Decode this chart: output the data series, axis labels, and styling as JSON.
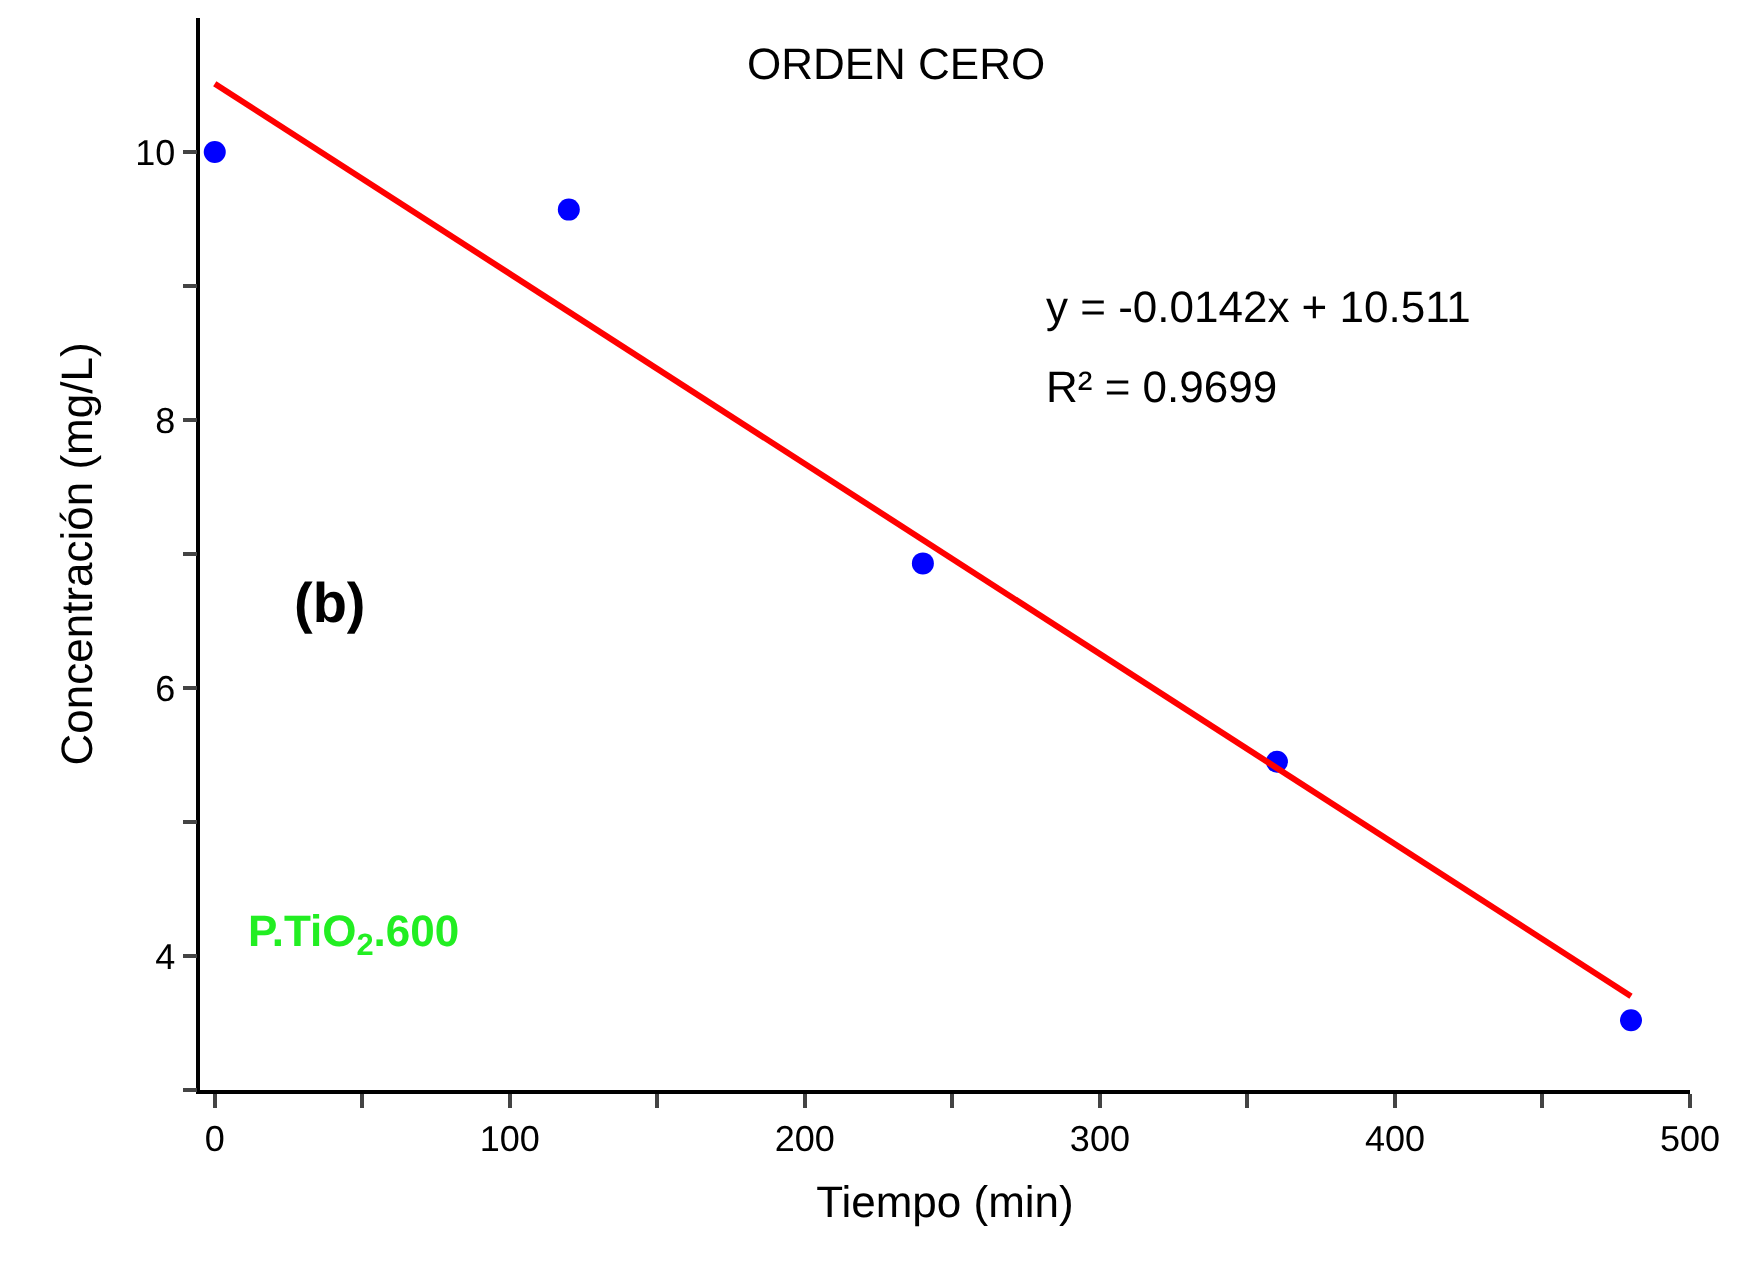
{
  "chart_data": {
    "type": "scatter",
    "title": "ORDEN CERO",
    "xlabel": "Tiempo (min)",
    "ylabel": "Concentración (mg/L)",
    "annotations": [
      "y = -0.0142x + 10.511",
      "R² = 0.9699",
      "(b)",
      "P.TiO$_{2}$.600"
    ],
    "series": [
      {
        "color": "#0000ff",
        "marker": "circle",
        "x": [
          0,
          120,
          240,
          360,
          480
        ],
        "values": [
          10,
          9.57,
          6.93,
          5.45,
          3.52
        ]
      },
      {
        "type": "line",
        "color": "#ff0000",
        "marker": "none",
        "line_style": "solid",
        "x": [
          0,
          480
        ],
        "values": [
          10.51,
          3.7
        ]
      }
    ],
    "xlim": [
      -5,
      500
    ],
    "ylim": [
      3,
      11
    ],
    "xticks": [
      0,
      {
        "value": 50,
        "label": null
      },
      100,
      {
        "value": 150,
        "label": null
      },
      200,
      {
        "value": 250,
        "label": null
      },
      300,
      {
        "value": 350,
        "label": null
      },
      400,
      {
        "value": 450,
        "label": null
      },
      500
    ],
    "yticks": [
      {
        "value": 3,
        "label": null
      },
      4,
      {
        "value": 5,
        "label": null
      },
      6,
      {
        "value": 7,
        "label": null
      },
      8,
      {
        "value": 9,
        "label": null
      },
      10
    ]
  }
}
